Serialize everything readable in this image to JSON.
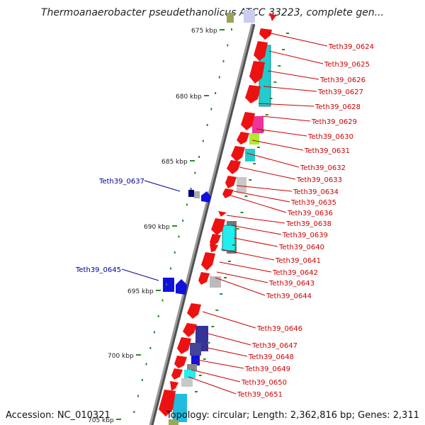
{
  "title": "Thermoanaerobacter pseudethanolicus ATCC 33223, complete gen...",
  "accession": "Accession: NC_010321",
  "topology": "Topology: circular; Length: 2,362,816 bp; Genes: 2,311",
  "colors": {
    "backbone": "#909090",
    "tick": "#2a8a2a",
    "gene_red": "#ee1111",
    "gene_blue": "#1111dd",
    "label_red": "#cc0000",
    "label_blue": "#000099"
  },
  "ticks": [
    "675 kbp",
    "680 kbp",
    "685 kbp",
    "690 kbp",
    "695 kbp",
    "700 kbp",
    "705 kbp"
  ],
  "labels_right": [
    "Teth39_0624",
    "Teth39_0625",
    "Teth39_0626",
    "Teth39_0627",
    "Teth39_0628",
    "Teth39_0629",
    "Teth39_0630",
    "Teth39_0631",
    "Teth39_0632",
    "Teth39_0633",
    "Teth39_0634",
    "Teth39_0635",
    "Teth39_0636",
    "Teth39_0638",
    "Teth39_0639",
    "Teth39_0640",
    "Teth39_0641",
    "Teth39_0642",
    "Teth39_0643",
    "Teth39_0644",
    "Teth39_0646",
    "Teth39_0647",
    "Teth39_0648",
    "Teth39_0649",
    "Teth39_0650",
    "Teth39_0651"
  ],
  "labels_left": [
    "Teth39_0637",
    "Teth39_0645"
  ]
}
